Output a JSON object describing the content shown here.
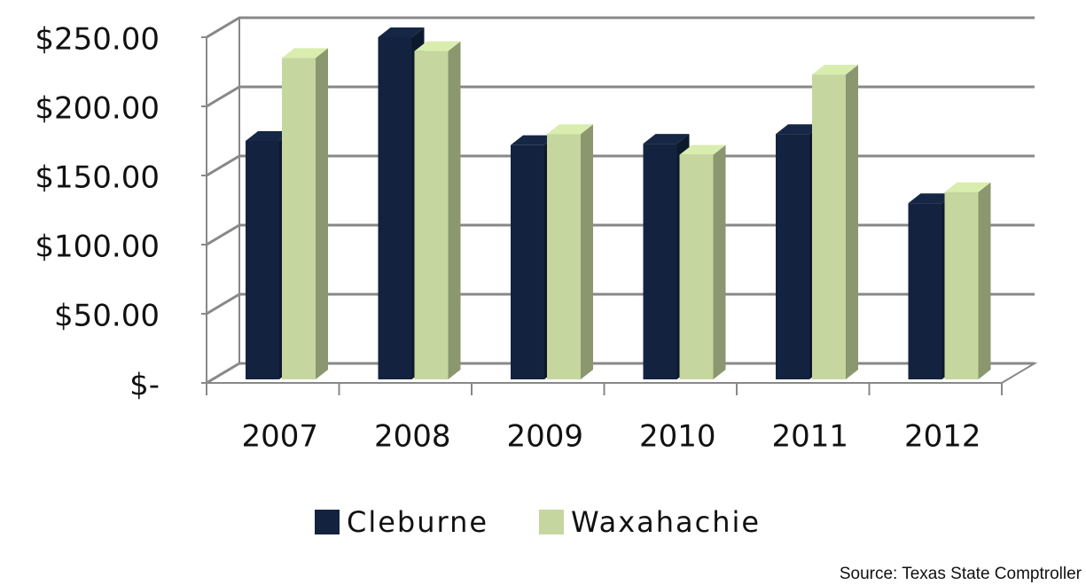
{
  "chart_data": {
    "type": "bar3d",
    "categories": [
      "2007",
      "2008",
      "2009",
      "2010",
      "2011",
      "2012"
    ],
    "series": [
      {
        "name": "Cleburne",
        "color": "#13233f",
        "values": [
          175,
          250,
          172,
          173,
          180,
          130
        ]
      },
      {
        "name": "Waxahachie",
        "color": "#c5d79e",
        "values": [
          235,
          240,
          180,
          165,
          223,
          138
        ]
      }
    ],
    "ylim": [
      0,
      250
    ],
    "yticks": [
      {
        "value": 0,
        "label": "$-"
      },
      {
        "value": 50,
        "label": "$50.00"
      },
      {
        "value": 100,
        "label": "$100.00"
      },
      {
        "value": 150,
        "label": "$150.00"
      },
      {
        "value": 200,
        "label": "$200.00"
      },
      {
        "value": 250,
        "label": "$250.00"
      }
    ],
    "grid": true,
    "legend": "bottom",
    "source": "Source: Texas State Comptroller"
  }
}
